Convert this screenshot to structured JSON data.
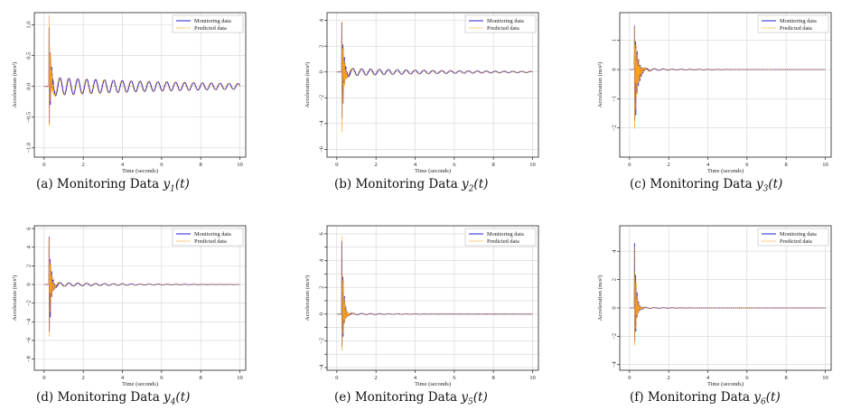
{
  "common": {
    "xlabel": "Time (seconds)",
    "ylabel": "Acceleration (m/s²)",
    "legend_location": "top-right",
    "legend_monitoring": "Monitoring data",
    "legend_predicted": "Predicted data",
    "grid": true,
    "xlim": [
      -0.5,
      10.3
    ],
    "colors": {
      "monitoring": "#1f1fd0",
      "predicted": "#ffa31a"
    }
  },
  "panels": [
    {
      "id": "a",
      "tag": "(a)",
      "caption_prefix": "Monitoring Data",
      "sym": "y",
      "sub": "1",
      "arg": "(t)"
    },
    {
      "id": "b",
      "tag": "(b)",
      "caption_prefix": "Monitoring Data",
      "sym": "y",
      "sub": "2",
      "arg": "(t)"
    },
    {
      "id": "c",
      "tag": "(c)",
      "caption_prefix": "Monitoring Data",
      "sym": "y",
      "sub": "3",
      "arg": "(t)"
    },
    {
      "id": "d",
      "tag": "(d)",
      "caption_prefix": "Monitoring Data",
      "sym": "y",
      "sub": "4",
      "arg": "(t)"
    },
    {
      "id": "e",
      "tag": "(e)",
      "caption_prefix": "Monitoring Data",
      "sym": "y",
      "sub": "5",
      "arg": "(t)"
    },
    {
      "id": "f",
      "tag": "(f)",
      "caption_prefix": "Monitoring Data",
      "sym": "y",
      "sub": "6",
      "arg": "(t)"
    }
  ],
  "chart_data": [
    {
      "type": "line",
      "xlabel": "Time (seconds)",
      "ylabel": "Acceleration (m/s²)",
      "xlim": [
        -0.5,
        10.3
      ],
      "ylim": [
        -1.15,
        1.2
      ],
      "xticks": [
        0,
        2,
        4,
        6,
        8,
        10
      ],
      "yticks": [
        -1.0,
        -0.5,
        0.0,
        0.5,
        1.0
      ],
      "ytick_labels": [
        "−1.0",
        "−0.5",
        "0.0",
        "0.5",
        "1.0"
      ],
      "series": [
        {
          "name": "Monitoring data",
          "peak": 1.05,
          "trough": -1.05,
          "onset": 0.25,
          "tail_amplitude": 0.15,
          "tail_decay": 0.12
        },
        {
          "name": "Predicted data",
          "peak": 1.15,
          "trough": -1.0,
          "onset": 0.25,
          "tail_amplitude": 0.15,
          "tail_decay": 0.12
        }
      ]
    },
    {
      "type": "line",
      "xlabel": "Time (seconds)",
      "ylabel": "Acceleration (m/s²)",
      "xlim": [
        -0.5,
        10.3
      ],
      "ylim": [
        -6.6,
        4.6
      ],
      "xticks": [
        0,
        2,
        4,
        6,
        8,
        10
      ],
      "yticks": [
        -6,
        -4,
        -2,
        0,
        2,
        4
      ],
      "ytick_labels": [
        "−6",
        "−4",
        "−2",
        "0",
        "2",
        "4"
      ],
      "series": [
        {
          "name": "Monitoring data",
          "peak": 4.2,
          "trough": -6.0,
          "onset": 0.25,
          "tail_amplitude": 0.3,
          "tail_decay": 0.18
        },
        {
          "name": "Predicted data",
          "peak": 4.0,
          "trough": -6.3,
          "onset": 0.25,
          "tail_amplitude": 0.3,
          "tail_decay": 0.18
        }
      ]
    },
    {
      "type": "line",
      "xlabel": "Time (seconds)",
      "ylabel": "Acceleration (m/s²)",
      "xlim": [
        -0.5,
        10.3
      ],
      "ylim": [
        -3.0,
        1.95
      ],
      "xticks": [
        0,
        2,
        4,
        6,
        8,
        10
      ],
      "yticks": [
        -2,
        -1,
        0,
        1
      ],
      "ytick_labels": [
        "−2",
        "−1",
        "0",
        "1"
      ],
      "series": [
        {
          "name": "Monitoring data",
          "peak": 1.6,
          "trough": -2.7,
          "onset": 0.25,
          "tail_amplitude": 0.05,
          "tail_decay": 0.5
        },
        {
          "name": "Predicted data",
          "peak": 1.5,
          "trough": -2.5,
          "onset": 0.25,
          "tail_amplitude": 0.05,
          "tail_decay": 0.5
        }
      ]
    },
    {
      "type": "line",
      "xlabel": "Time (seconds)",
      "ylabel": "Acceleration (m/s²)",
      "xlim": [
        -0.5,
        10.3
      ],
      "ylim": [
        -9.2,
        6.3
      ],
      "xticks": [
        0,
        2,
        4,
        6,
        8,
        10
      ],
      "yticks": [
        -8,
        -6,
        -4,
        -2,
        0,
        2,
        4,
        6
      ],
      "ytick_labels": [
        "−8",
        "−6",
        "−4",
        "−2",
        "0",
        "2",
        "4",
        "6"
      ],
      "series": [
        {
          "name": "Monitoring data",
          "peak": 5.6,
          "trough": -8.3,
          "onset": 0.25,
          "tail_amplitude": 0.25,
          "tail_decay": 0.3
        },
        {
          "name": "Predicted data",
          "peak": 5.2,
          "trough": -7.5,
          "onset": 0.25,
          "tail_amplitude": 0.25,
          "tail_decay": 0.3
        }
      ]
    },
    {
      "type": "line",
      "xlabel": "Time (seconds)",
      "ylabel": "Acceleration (m/s²)",
      "xlim": [
        -0.5,
        10.3
      ],
      "ylim": [
        -4.2,
        6.6
      ],
      "xticks": [
        0,
        2,
        4,
        6,
        8,
        10
      ],
      "yticks": [
        -4,
        -3,
        -2,
        -1,
        0,
        1,
        2,
        3,
        4,
        5,
        6
      ],
      "ytick_labels": [
        "−4",
        "",
        "−2",
        "",
        "0",
        "",
        "2",
        "",
        "4",
        "",
        "6"
      ],
      "series": [
        {
          "name": "Monitoring data",
          "peak": 6.0,
          "trough": -3.9,
          "onset": 0.25,
          "tail_amplitude": 0.08,
          "tail_decay": 0.5
        },
        {
          "name": "Predicted data",
          "peak": 6.2,
          "trough": -3.6,
          "onset": 0.25,
          "tail_amplitude": 0.08,
          "tail_decay": 0.5
        }
      ]
    },
    {
      "type": "line",
      "xlabel": "Time (seconds)",
      "ylabel": "Acceleration (m/s²)",
      "xlim": [
        -0.5,
        10.3
      ],
      "ylim": [
        -4.4,
        5.8
      ],
      "xticks": [
        0,
        2,
        4,
        6,
        8,
        10
      ],
      "yticks": [
        -4,
        -2,
        0,
        2,
        4
      ],
      "ytick_labels": [
        "−4",
        "−2",
        "0",
        "2",
        "4"
      ],
      "series": [
        {
          "name": "Monitoring data",
          "peak": 5.0,
          "trough": -3.8,
          "onset": 0.25,
          "tail_amplitude": 0.05,
          "tail_decay": 0.6
        },
        {
          "name": "Predicted data",
          "peak": 4.6,
          "trough": -3.5,
          "onset": 0.25,
          "tail_amplitude": 0.05,
          "tail_decay": 0.6
        }
      ]
    }
  ]
}
